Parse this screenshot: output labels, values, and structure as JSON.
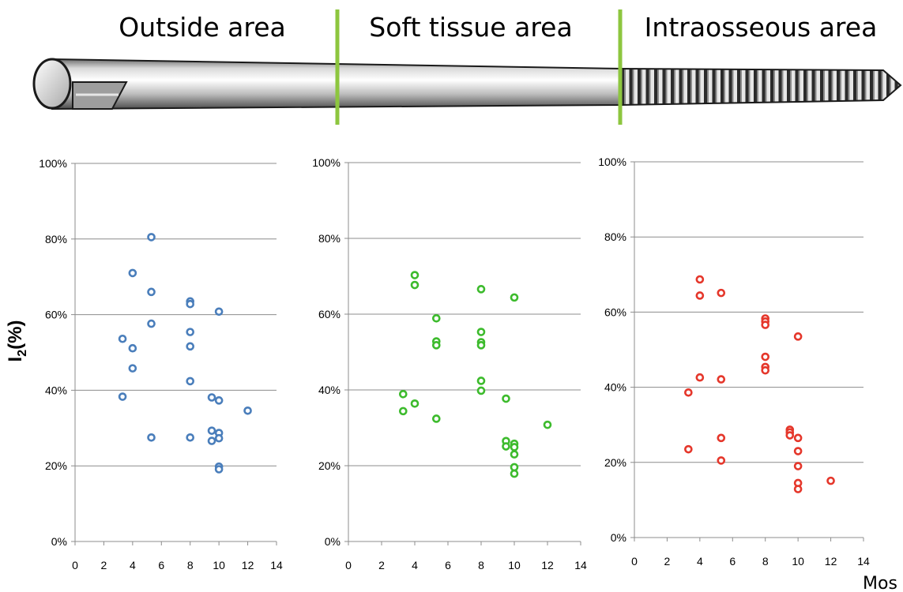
{
  "regions": [
    "Outside area",
    "Soft tissue area",
    "Intraosseous area"
  ],
  "y_axis_title": {
    "main": "I",
    "sub": "2",
    "rest": "(%)"
  },
  "x_axis_unit": "Mos",
  "colors": {
    "outside": "#4a7ebb",
    "soft": "#3dbb2d",
    "intra": "#e5372b",
    "divider": "#8dc63f",
    "grid": "#8c8c8c"
  },
  "chart_data": [
    {
      "type": "scatter",
      "name": "Outside area",
      "color": "#4a7ebb",
      "xlim": [
        0,
        14
      ],
      "ylim": [
        0,
        100
      ],
      "x_ticks": [
        0,
        2,
        4,
        6,
        8,
        10,
        12,
        14
      ],
      "y_ticks": [
        "0%",
        "20%",
        "40%",
        "60%",
        "80%",
        "100%"
      ],
      "points": [
        [
          5.3,
          80.5
        ],
        [
          4,
          71
        ],
        [
          5.3,
          66
        ],
        [
          8,
          63.5
        ],
        [
          8,
          62.8
        ],
        [
          10,
          60.8
        ],
        [
          5.3,
          57.6
        ],
        [
          8,
          55.4
        ],
        [
          3.3,
          53.6
        ],
        [
          8,
          51.6
        ],
        [
          4,
          51.1
        ],
        [
          4,
          45.8
        ],
        [
          8,
          42.4
        ],
        [
          3.3,
          38.3
        ],
        [
          9.5,
          38.1
        ],
        [
          10,
          37.3
        ],
        [
          12,
          34.6
        ],
        [
          9.5,
          29.3
        ],
        [
          10,
          28.7
        ],
        [
          5.3,
          27.5
        ],
        [
          8,
          27.5
        ],
        [
          10,
          27.3
        ],
        [
          9.5,
          26.6
        ],
        [
          10,
          19.8
        ],
        [
          10,
          19.1
        ]
      ]
    },
    {
      "type": "scatter",
      "name": "Soft tissue area",
      "color": "#3dbb2d",
      "xlim": [
        0,
        14
      ],
      "ylim": [
        0,
        100
      ],
      "x_ticks": [
        0,
        2,
        4,
        6,
        8,
        10,
        12,
        14
      ],
      "y_ticks": [
        "0%",
        "20%",
        "40%",
        "60%",
        "80%",
        "100%"
      ],
      "points": [
        [
          4,
          70.3
        ],
        [
          4,
          67.7
        ],
        [
          8,
          66.6
        ],
        [
          10,
          64.4
        ],
        [
          5.3,
          58.9
        ],
        [
          8,
          55.3
        ],
        [
          5.3,
          52.8
        ],
        [
          8,
          52.6
        ],
        [
          5.3,
          51.8
        ],
        [
          8,
          51.8
        ],
        [
          8,
          42.4
        ],
        [
          8,
          39.8
        ],
        [
          3.3,
          38.9
        ],
        [
          9.5,
          37.7
        ],
        [
          4,
          36.4
        ],
        [
          3.3,
          34.4
        ],
        [
          5.3,
          32.4
        ],
        [
          12,
          30.8
        ],
        [
          9.5,
          26.5
        ],
        [
          10,
          25.8
        ],
        [
          9.5,
          25.1
        ],
        [
          10,
          24.9
        ],
        [
          10,
          23
        ],
        [
          10,
          19.6
        ],
        [
          10,
          17.9
        ]
      ]
    },
    {
      "type": "scatter",
      "name": "Intraosseous area",
      "color": "#e5372b",
      "xlim": [
        0,
        14
      ],
      "ylim": [
        0,
        100
      ],
      "x_ticks": [
        0,
        2,
        4,
        6,
        8,
        10,
        12,
        14
      ],
      "y_ticks": [
        "0%",
        "20%",
        "40%",
        "60%",
        "80%",
        "100%"
      ],
      "points": [
        [
          4,
          68.7
        ],
        [
          5.3,
          65.1
        ],
        [
          4,
          64.4
        ],
        [
          8,
          58.3
        ],
        [
          8,
          57.5
        ],
        [
          8,
          56.6
        ],
        [
          10,
          53.5
        ],
        [
          8,
          48.1
        ],
        [
          8,
          45.4
        ],
        [
          8,
          44.5
        ],
        [
          4,
          42.6
        ],
        [
          5.3,
          42.1
        ],
        [
          3.3,
          38.6
        ],
        [
          9.5,
          28.7
        ],
        [
          9.5,
          28
        ],
        [
          9.5,
          27.2
        ],
        [
          5.3,
          26.5
        ],
        [
          10,
          26.5
        ],
        [
          3.3,
          23.5
        ],
        [
          10,
          23
        ],
        [
          5.3,
          20.5
        ],
        [
          10,
          19
        ],
        [
          12,
          15.1
        ],
        [
          10,
          14.5
        ],
        [
          10,
          12.9
        ]
      ]
    }
  ]
}
